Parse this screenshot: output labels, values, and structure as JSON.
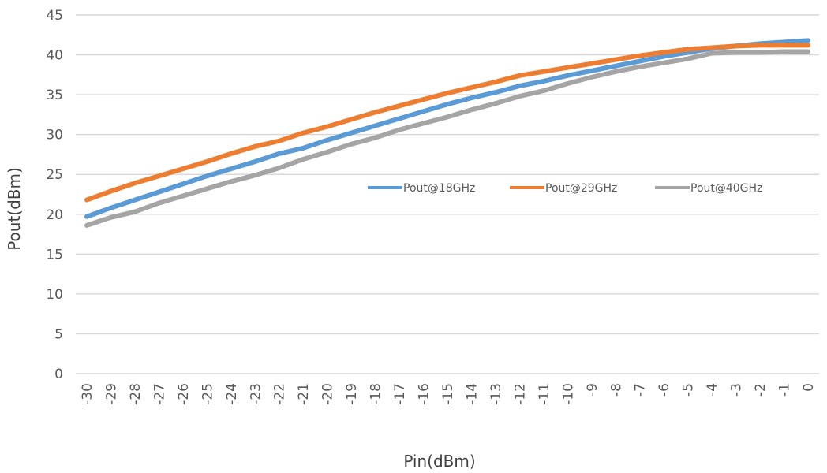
{
  "chart_data": {
    "type": "line",
    "title": "",
    "xlabel": "Pin(dBm)",
    "ylabel": "Pout(dBm)",
    "ylim": [
      0,
      45
    ],
    "yticks": [
      0,
      5,
      10,
      15,
      20,
      25,
      30,
      35,
      40,
      45
    ],
    "grid": true,
    "legend_position": "center-right",
    "x": [
      -30,
      -29,
      -28,
      -27,
      -26,
      -25,
      -24,
      -23,
      -22,
      -21,
      -20,
      -19,
      -18,
      -17,
      -16,
      -15,
      -14,
      -13,
      -12,
      -11,
      -10,
      -9,
      -8,
      -7,
      -6,
      -5,
      -4,
      -3,
      -2,
      -1,
      0
    ],
    "series": [
      {
        "name": "Pout@18GHz",
        "color": "#5b9bd5",
        "values": [
          19.7,
          20.8,
          21.8,
          22.8,
          23.8,
          24.8,
          25.7,
          26.6,
          27.6,
          28.3,
          29.3,
          30.2,
          31.1,
          32.0,
          32.9,
          33.8,
          34.6,
          35.3,
          36.1,
          36.7,
          37.4,
          38.0,
          38.6,
          39.2,
          39.8,
          40.3,
          40.8,
          41.1,
          41.4,
          41.6,
          41.8
        ]
      },
      {
        "name": "Pout@29GHz",
        "color": "#ed7d31",
        "values": [
          21.8,
          22.9,
          23.9,
          24.8,
          25.7,
          26.6,
          27.6,
          28.5,
          29.2,
          30.2,
          31.0,
          31.9,
          32.8,
          33.6,
          34.4,
          35.2,
          35.9,
          36.6,
          37.4,
          37.9,
          38.4,
          38.9,
          39.4,
          39.9,
          40.3,
          40.7,
          40.9,
          41.1,
          41.2,
          41.2,
          41.2
        ]
      },
      {
        "name": "Pout@40GHz",
        "color": "#a5a5a5",
        "values": [
          18.6,
          19.6,
          20.3,
          21.4,
          22.3,
          23.2,
          24.1,
          24.9,
          25.8,
          26.9,
          27.8,
          28.8,
          29.6,
          30.6,
          31.4,
          32.2,
          33.1,
          33.9,
          34.8,
          35.5,
          36.4,
          37.2,
          37.9,
          38.5,
          39.0,
          39.5,
          40.2,
          40.3,
          40.3,
          40.4,
          40.4
        ]
      }
    ]
  }
}
